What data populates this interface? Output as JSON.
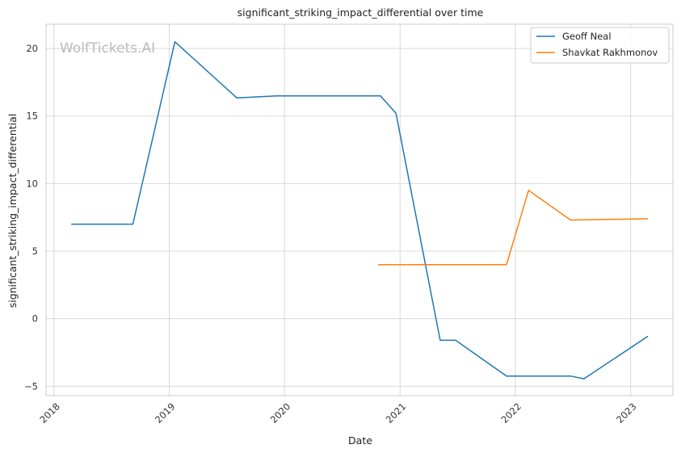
{
  "chart_data": {
    "type": "line",
    "title": "significant_striking_impact_differential over time",
    "xlabel": "Date",
    "ylabel": "significant_striking_impact_differential",
    "watermark": "WolfTickets.AI",
    "x_ticks": [
      "2018",
      "2019",
      "2020",
      "2021",
      "2022",
      "2023"
    ],
    "y_ticks": [
      "−5",
      "0",
      "5",
      "10",
      "15",
      "20"
    ],
    "y_tick_values": [
      -5,
      0,
      5,
      10,
      15,
      20
    ],
    "ylim": [
      -5.7,
      21.8
    ],
    "xlim": [
      "2017-12-07",
      "2023-05-15"
    ],
    "grid": true,
    "legend_position": "top-right",
    "series": [
      {
        "name": "Geoff Neal",
        "color": "#1f77b4",
        "x": [
          "2018-02-25",
          "2018-09-08",
          "2019-01-19",
          "2019-08-03",
          "2019-12-07",
          "2020-10-31",
          "2020-12-19",
          "2021-05-08",
          "2021-06-26",
          "2021-12-04",
          "2022-06-25",
          "2022-08-06",
          "2023-02-25"
        ],
        "y": [
          7.0,
          7.0,
          20.5,
          16.35,
          16.5,
          16.5,
          15.2,
          -1.6,
          -1.6,
          -4.25,
          -4.25,
          -4.45,
          -1.3
        ]
      },
      {
        "name": "Shavkat Rakhmonov",
        "color": "#ff7f0e",
        "x": [
          "2020-10-24",
          "2021-12-04",
          "2022-02-12",
          "2022-06-25",
          "2023-02-25"
        ],
        "y": [
          4.0,
          4.0,
          9.5,
          7.3,
          7.4
        ]
      }
    ]
  }
}
